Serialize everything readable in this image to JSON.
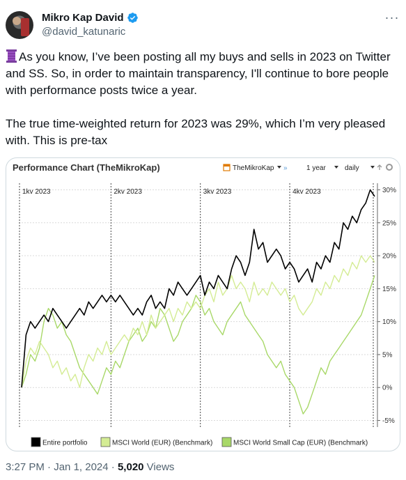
{
  "author": {
    "name": "Mikro Kap David",
    "handle": "@david_katunaric",
    "verified": true,
    "more_icon": "ellipsis-icon"
  },
  "tweet": {
    "paragraph1": "As you know, I’ve been posting all my buys and sells in 2023 on Twitter and SS. So, in order to maintain transparency, I'll continue to bore people with performance posts twice a year.",
    "paragraph2": "The true time-weighted return for 2023 was 29%, which I’m very pleased with. This is pre-tax",
    "leading_emoji": "thread-spool-icon"
  },
  "meta": {
    "time": "3:27 PM",
    "separator": " · ",
    "date": "Jan 1, 2024",
    "views_count": "5,020",
    "views_label": " Views"
  },
  "chart_card": {
    "title": "Performance Chart (TheMikroKap)",
    "portfolio_label": "TheMikroKap",
    "period": "1 year",
    "interval": "daily",
    "quarters": [
      "1kv 2023",
      "2kv 2023",
      "3kv 2023",
      "4kv 2023"
    ],
    "colors": {
      "portfolio": "#000000",
      "msci_world": "#d4ec94",
      "msci_small": "#a8d868",
      "grid": "#d9d9d9",
      "accent": "#e07a00"
    }
  },
  "chart_data": {
    "type": "line",
    "title": "Performance Chart (TheMikroKap)",
    "x_labels": [
      "1kv 2023",
      "2kv 2023",
      "3kv 2023",
      "4kv 2023"
    ],
    "y_ticks": [
      "30%",
      "25%",
      "20%",
      "15%",
      "10%",
      "5%",
      "0%",
      "-5%"
    ],
    "ylim": [
      -6,
      31
    ],
    "y_tick_values": [
      30,
      25,
      20,
      15,
      10,
      5,
      0,
      -5
    ],
    "x_count": 80,
    "legend_position": "bottom",
    "grid": true,
    "series": [
      {
        "name": "Entire portfolio",
        "values": [
          0,
          8,
          10,
          9,
          10,
          11,
          10,
          12,
          11,
          10,
          9,
          10,
          11,
          12,
          11,
          13,
          12,
          13,
          14,
          13,
          14,
          13,
          14,
          13,
          12,
          11,
          12,
          11,
          13,
          14,
          12,
          13,
          12,
          15,
          14,
          16,
          15,
          14,
          15,
          16,
          17,
          14,
          16,
          15,
          17,
          16,
          15,
          18,
          20,
          19,
          17,
          19,
          24,
          21,
          22,
          19,
          20,
          21,
          20,
          18,
          19,
          18,
          16,
          17,
          18,
          16,
          19,
          18,
          20,
          19,
          22,
          21,
          25,
          24,
          26,
          25,
          27,
          28,
          30,
          29
        ]
      },
      {
        "name": "MSCI World (EUR) (Benchmark)",
        "values": [
          0,
          4,
          6,
          5,
          7,
          6,
          5,
          3,
          4,
          2,
          3,
          1,
          2,
          0,
          3,
          5,
          4,
          6,
          5,
          7,
          5,
          6,
          7,
          8,
          7,
          9,
          8,
          10,
          8,
          11,
          9,
          10,
          11,
          12,
          10,
          12,
          11,
          13,
          12,
          13,
          12,
          14,
          15,
          13,
          16,
          14,
          15,
          17,
          15,
          16,
          15,
          13,
          16,
          14,
          15,
          14,
          16,
          15,
          14,
          15,
          13,
          14,
          12,
          11,
          12,
          13,
          15,
          14,
          16,
          15,
          17,
          16,
          18,
          17,
          19,
          18,
          20,
          19,
          20,
          19
        ]
      },
      {
        "name": "MSCI World Small Cap (EUR) (Benchmark)",
        "values": [
          0,
          2,
          5,
          4,
          6,
          10,
          12,
          11,
          9,
          10,
          8,
          7,
          5,
          3,
          2,
          1,
          0,
          -1,
          1,
          3,
          2,
          4,
          3,
          5,
          7,
          8,
          9,
          7,
          8,
          10,
          9,
          12,
          11,
          9,
          7,
          8,
          10,
          11,
          12,
          14,
          13,
          11,
          12,
          10,
          9,
          8,
          10,
          11,
          12,
          13,
          11,
          10,
          9,
          8,
          7,
          5,
          4,
          3,
          4,
          2,
          1,
          0,
          -2,
          -4,
          -3,
          -1,
          1,
          3,
          2,
          4,
          5,
          6,
          7,
          8,
          9,
          10,
          11,
          13,
          15,
          17
        ]
      }
    ]
  }
}
